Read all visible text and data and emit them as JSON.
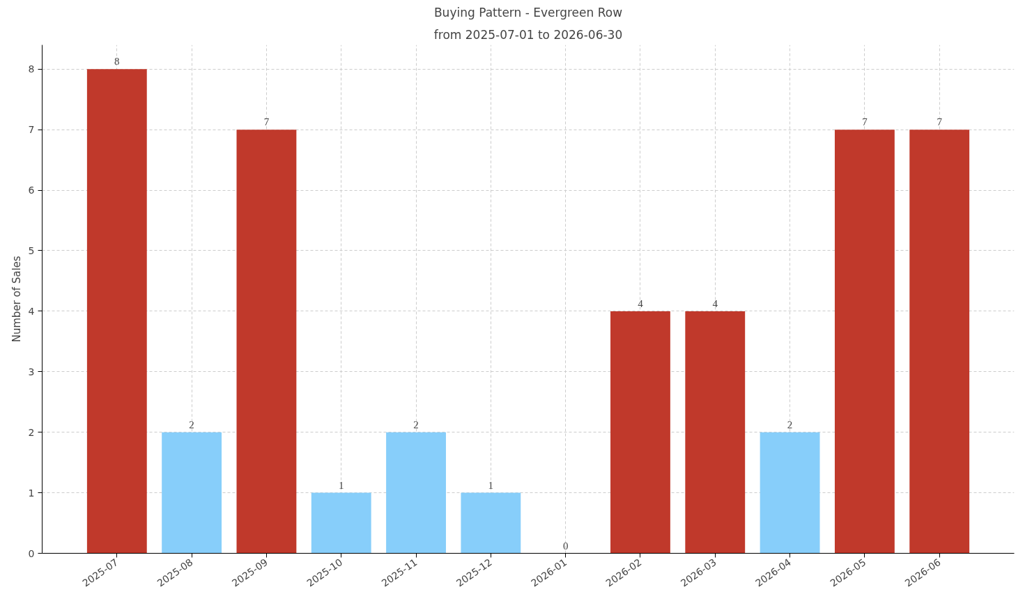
{
  "chart_data": {
    "type": "bar",
    "title": "Buying Pattern - Evergreen Row",
    "subtitle": "from 2025-07-01 to 2026-06-30",
    "ylabel": "Number of Sales",
    "categories": [
      "2025-07",
      "2025-08",
      "2025-09",
      "2025-10",
      "2025-11",
      "2025-12",
      "2026-01",
      "2026-02",
      "2026-03",
      "2026-04",
      "2026-05",
      "2026-06"
    ],
    "values": [
      8,
      2,
      7,
      1,
      2,
      1,
      0,
      4,
      4,
      2,
      7,
      7
    ],
    "colors": [
      "#c0392b",
      "#87cefa",
      "#c0392b",
      "#87cefa",
      "#87cefa",
      "#87cefa",
      "#87cefa",
      "#c0392b",
      "#c0392b",
      "#87cefa",
      "#c0392b",
      "#c0392b"
    ],
    "ylim": [
      0,
      8.4
    ],
    "yticks": [
      0,
      1,
      2,
      3,
      4,
      5,
      6,
      7,
      8
    ],
    "grid": true,
    "data_labels": true
  }
}
